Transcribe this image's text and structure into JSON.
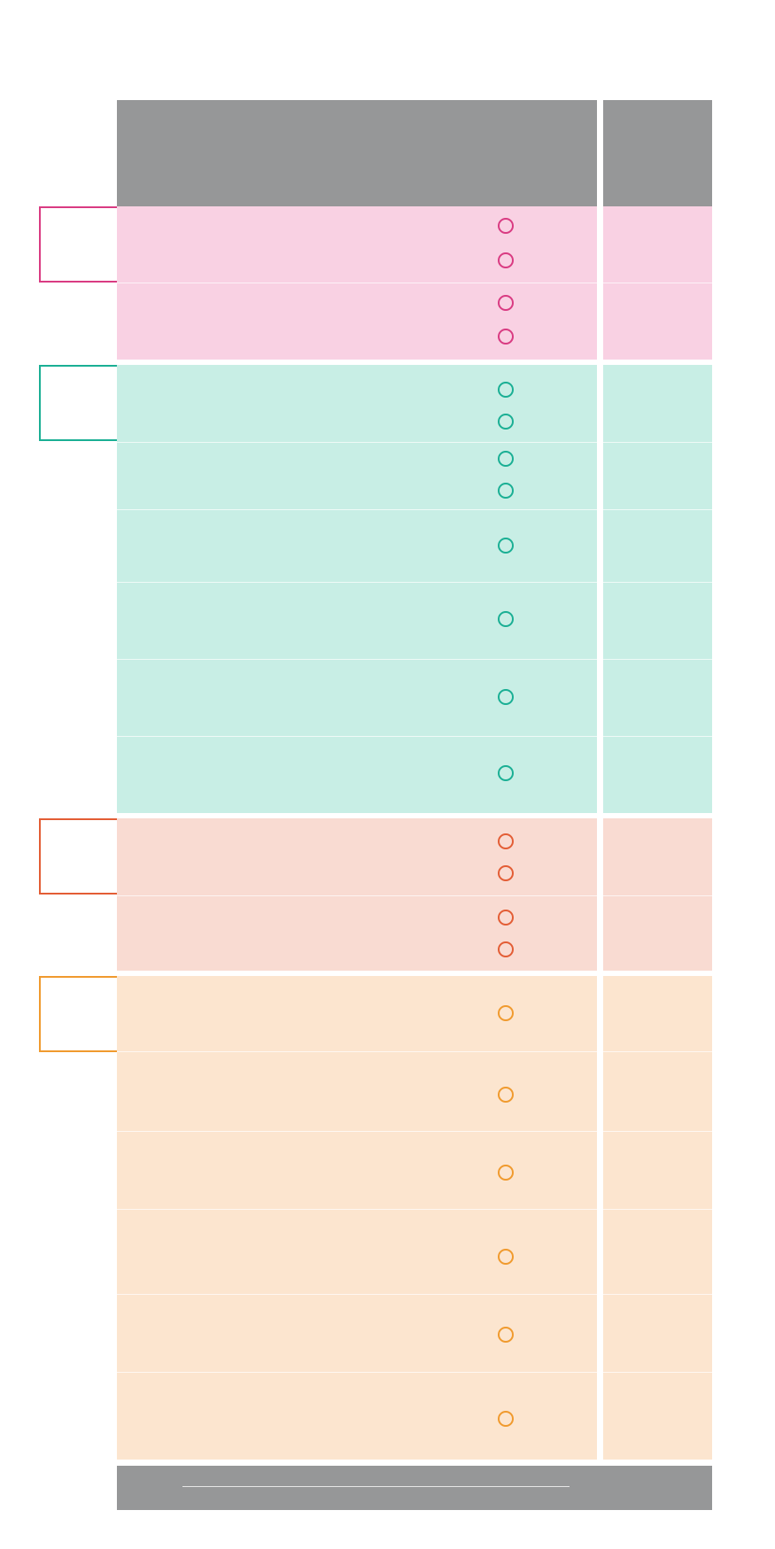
{
  "colors": {
    "header": "#969798",
    "footer": "#969798",
    "pink_fill": "#f9d1e3",
    "pink_accent": "#d93b82",
    "teal_fill": "#c8eee5",
    "teal_accent": "#1aaf94",
    "coral_fill": "#f9dbd2",
    "coral_accent": "#e35d35",
    "peach_fill": "#fce5cf",
    "peach_accent": "#f09a2e"
  },
  "groups": [
    {
      "name": "pink-group",
      "rows": [
        {
          "circles": 2
        },
        {
          "circles": 2
        }
      ]
    },
    {
      "name": "teal-group",
      "rows": [
        {
          "circles": 2
        },
        {
          "circles": 2
        },
        {
          "circles": 1
        },
        {
          "circles": 1
        },
        {
          "circles": 1
        },
        {
          "circles": 1
        }
      ]
    },
    {
      "name": "coral-group",
      "rows": [
        {
          "circles": 2
        },
        {
          "circles": 2
        }
      ]
    },
    {
      "name": "peach-group",
      "rows": [
        {
          "circles": 1
        },
        {
          "circles": 1
        },
        {
          "circles": 1
        },
        {
          "circles": 1
        },
        {
          "circles": 1
        },
        {
          "circles": 1
        }
      ]
    }
  ],
  "icons": {
    "row_marker": "circle-outline-icon",
    "group_marker": "bracket-icon"
  }
}
